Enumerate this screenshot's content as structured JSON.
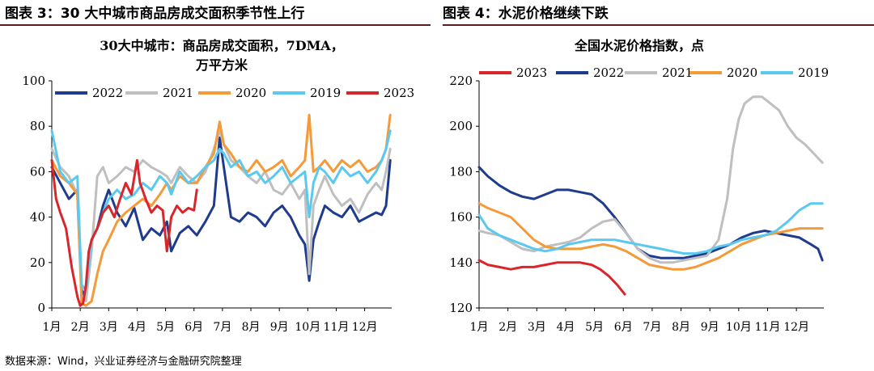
{
  "panel_titles": {
    "left": "图表 3：30 大中城市商品房成交面积季节性上行",
    "right": "图表 4：水泥价格继续下跌"
  },
  "source": "数据来源：Wind，兴业证券经济与金融研究院整理",
  "colors": {
    "2022": "#1f3b8c",
    "2021": "#bfbfbf",
    "2020": "#f59a3a",
    "2019": "#5bc8ef",
    "2023": "#d9262a",
    "rule": "#5a1e1e"
  },
  "chart_data": [
    {
      "type": "line",
      "title_lines": [
        "30大中城市：商品房成交面积，7DMA，",
        "万平方米"
      ],
      "xlabel": "",
      "ylabel": "",
      "ylim": [
        0,
        100
      ],
      "yticks": [
        0,
        20,
        40,
        60,
        80,
        100
      ],
      "xlim": [
        1,
        12.95
      ],
      "xticks": [
        "1月",
        "2月",
        "3月",
        "4月",
        "5月",
        "6月",
        "7月",
        "8月",
        "9月",
        "10月",
        "11月",
        "12月"
      ],
      "legend_order": [
        "2022",
        "2021",
        "2020",
        "2019",
        "2023"
      ],
      "legend_position": "top",
      "series": [
        {
          "name": "2022",
          "x": [
            1,
            1.3,
            1.6,
            1.9,
            2.05,
            2.2,
            2.4,
            2.6,
            2.8,
            3.0,
            3.3,
            3.6,
            3.9,
            4.2,
            4.5,
            4.8,
            5.05,
            5.2,
            5.5,
            5.8,
            6.1,
            6.4,
            6.7,
            6.9,
            7.05,
            7.3,
            7.6,
            7.9,
            8.2,
            8.5,
            8.8,
            9.1,
            9.4,
            9.7,
            9.9,
            10.05,
            10.2,
            10.4,
            10.6,
            10.9,
            11.2,
            11.5,
            11.8,
            12.1,
            12.4,
            12.6,
            12.75,
            12.9
          ],
          "y": [
            62,
            55,
            48,
            52,
            8,
            4,
            30,
            35,
            45,
            52,
            42,
            36,
            44,
            30,
            35,
            32,
            38,
            25,
            33,
            36,
            32,
            38,
            45,
            75,
            62,
            40,
            38,
            42,
            40,
            36,
            42,
            45,
            40,
            32,
            28,
            12,
            30,
            38,
            45,
            42,
            40,
            45,
            38,
            40,
            42,
            41,
            45,
            65
          ]
        },
        {
          "name": "2021",
          "x": [
            1,
            1.3,
            1.6,
            1.9,
            2.05,
            2.2,
            2.4,
            2.6,
            2.8,
            3.0,
            3.3,
            3.6,
            3.9,
            4.2,
            4.5,
            4.8,
            5.05,
            5.2,
            5.5,
            5.8,
            6.1,
            6.4,
            6.7,
            6.9,
            7.05,
            7.3,
            7.6,
            7.9,
            8.2,
            8.5,
            8.8,
            9.1,
            9.4,
            9.7,
            9.9,
            10.05,
            10.2,
            10.4,
            10.6,
            10.9,
            11.2,
            11.5,
            11.8,
            12.1,
            12.4,
            12.6,
            12.75,
            12.9
          ],
          "y": [
            70,
            62,
            58,
            50,
            5,
            3,
            25,
            58,
            62,
            55,
            58,
            62,
            60,
            65,
            62,
            60,
            58,
            55,
            62,
            58,
            55,
            60,
            70,
            78,
            72,
            65,
            62,
            58,
            55,
            60,
            52,
            50,
            55,
            48,
            52,
            15,
            45,
            52,
            58,
            50,
            45,
            48,
            42,
            50,
            55,
            52,
            60,
            70
          ]
        },
        {
          "name": "2020",
          "x": [
            1,
            1.3,
            1.6,
            1.9,
            2.05,
            2.2,
            2.4,
            2.6,
            2.8,
            3.0,
            3.3,
            3.6,
            3.9,
            4.2,
            4.5,
            4.8,
            5.05,
            5.2,
            5.5,
            5.8,
            6.1,
            6.4,
            6.7,
            6.9,
            7.05,
            7.3,
            7.6,
            7.9,
            8.2,
            8.5,
            8.8,
            9.1,
            9.4,
            9.7,
            9.9,
            10.05,
            10.2,
            10.4,
            10.6,
            10.9,
            11.2,
            11.5,
            11.8,
            12.1,
            12.4,
            12.6,
            12.75,
            12.9
          ],
          "y": [
            65,
            58,
            55,
            50,
            2,
            1,
            3,
            15,
            25,
            30,
            38,
            42,
            45,
            48,
            45,
            50,
            55,
            52,
            58,
            55,
            55,
            62,
            68,
            82,
            72,
            68,
            62,
            60,
            65,
            60,
            62,
            65,
            58,
            62,
            65,
            85,
            60,
            62,
            65,
            60,
            65,
            62,
            65,
            60,
            62,
            65,
            70,
            85
          ]
        },
        {
          "name": "2019",
          "x": [
            1,
            1.3,
            1.6,
            1.9,
            2.05,
            2.2,
            2.4,
            2.6,
            2.8,
            3.0,
            3.3,
            3.6,
            3.9,
            4.2,
            4.5,
            4.8,
            5.05,
            5.2,
            5.5,
            5.8,
            6.1,
            6.4,
            6.7,
            6.9,
            7.05,
            7.3,
            7.6,
            7.9,
            8.2,
            8.5,
            8.8,
            9.1,
            9.4,
            9.7,
            9.9,
            10.05,
            10.2,
            10.4,
            10.6,
            10.9,
            11.2,
            11.5,
            11.8,
            12.1,
            12.4,
            12.6,
            12.75,
            12.9
          ],
          "y": [
            78,
            60,
            55,
            58,
            10,
            8,
            30,
            35,
            42,
            48,
            52,
            48,
            50,
            55,
            52,
            58,
            55,
            50,
            60,
            55,
            58,
            62,
            65,
            70,
            68,
            62,
            65,
            58,
            60,
            55,
            58,
            62,
            55,
            58,
            60,
            40,
            55,
            62,
            60,
            55,
            62,
            58,
            60,
            55,
            60,
            65,
            70,
            78
          ]
        },
        {
          "name": "2023",
          "x": [
            1,
            1.15,
            1.3,
            1.5,
            1.7,
            1.9,
            2.0,
            2.1,
            2.2,
            2.3,
            2.4,
            2.6,
            2.8,
            3.0,
            3.2,
            3.4,
            3.6,
            3.8,
            4.0,
            4.1,
            4.3,
            4.5,
            4.7,
            4.9,
            5.05,
            5.2,
            5.4,
            5.6,
            5.8,
            6.0,
            6.1
          ],
          "y": [
            65,
            48,
            42,
            35,
            18,
            5,
            1,
            2,
            10,
            25,
            30,
            35,
            42,
            45,
            40,
            48,
            55,
            50,
            65,
            55,
            48,
            42,
            45,
            43,
            25,
            40,
            45,
            42,
            44,
            43,
            52
          ]
        }
      ]
    },
    {
      "type": "line",
      "title_lines": [
        "全国水泥价格指数，点"
      ],
      "xlabel": "",
      "ylabel": "",
      "ylim": [
        120,
        220
      ],
      "yticks": [
        120,
        140,
        160,
        180,
        200,
        220
      ],
      "xlim": [
        1,
        12.95
      ],
      "xticks": [
        "1月",
        "2月",
        "3月",
        "4月",
        "5月",
        "6月",
        "7月",
        "8月",
        "9月",
        "10月",
        "11月",
        "12月"
      ],
      "legend_order": [
        "2023",
        "2022",
        "2021",
        "2020",
        "2019"
      ],
      "legend_position": "top",
      "series": [
        {
          "name": "2023",
          "x": [
            1,
            1.3,
            1.7,
            2.1,
            2.5,
            2.9,
            3.3,
            3.7,
            4.1,
            4.5,
            4.9,
            5.2,
            5.5,
            5.8,
            6.05
          ],
          "y": [
            141,
            139,
            138,
            137,
            138,
            138,
            139,
            140,
            140,
            140,
            139,
            137,
            134,
            130,
            126
          ]
        },
        {
          "name": "2022",
          "x": [
            1,
            1.3,
            1.7,
            2.1,
            2.5,
            2.9,
            3.3,
            3.7,
            4.1,
            4.5,
            4.9,
            5.3,
            5.7,
            6.1,
            6.5,
            6.9,
            7.3,
            7.7,
            8.1,
            8.5,
            8.9,
            9.3,
            9.7,
            10.1,
            10.5,
            10.9,
            11.3,
            11.7,
            12.1,
            12.5,
            12.75,
            12.9
          ],
          "y": [
            182,
            178,
            174,
            171,
            169,
            168,
            170,
            172,
            172,
            171,
            170,
            166,
            160,
            153,
            146,
            143,
            142,
            142,
            142,
            143,
            144,
            146,
            148,
            151,
            153,
            154,
            153,
            152,
            151,
            148,
            146,
            141
          ]
        },
        {
          "name": "2021",
          "x": [
            1,
            1.3,
            1.7,
            2.1,
            2.5,
            2.9,
            3.3,
            3.7,
            4.1,
            4.5,
            4.9,
            5.3,
            5.7,
            6.1,
            6.5,
            6.9,
            7.3,
            7.7,
            8.1,
            8.5,
            8.9,
            9.3,
            9.6,
            9.8,
            10.0,
            10.2,
            10.5,
            10.8,
            11.1,
            11.4,
            11.7,
            12.0,
            12.3,
            12.6,
            12.9
          ],
          "y": [
            154,
            153,
            152,
            149,
            146,
            145,
            147,
            148,
            149,
            151,
            155,
            158,
            159,
            153,
            146,
            142,
            140,
            140,
            141,
            142,
            143,
            150,
            168,
            190,
            203,
            210,
            213,
            213,
            210,
            207,
            200,
            195,
            192,
            188,
            184
          ]
        },
        {
          "name": "2020",
          "x": [
            1,
            1.3,
            1.7,
            2.1,
            2.5,
            2.9,
            3.3,
            3.7,
            4.1,
            4.5,
            4.9,
            5.3,
            5.7,
            6.1,
            6.5,
            6.9,
            7.3,
            7.7,
            8.1,
            8.5,
            8.9,
            9.3,
            9.7,
            10.1,
            10.5,
            10.9,
            11.3,
            11.7,
            12.1,
            12.5,
            12.9
          ],
          "y": [
            166,
            164,
            162,
            160,
            155,
            150,
            147,
            146,
            146,
            146,
            147,
            148,
            147,
            145,
            142,
            139,
            138,
            137,
            137,
            138,
            140,
            142,
            145,
            148,
            150,
            152,
            153,
            154,
            155,
            155,
            155
          ]
        },
        {
          "name": "2019",
          "x": [
            1,
            1.3,
            1.7,
            2.1,
            2.5,
            2.9,
            3.3,
            3.7,
            4.1,
            4.5,
            4.9,
            5.3,
            5.7,
            6.1,
            6.5,
            6.9,
            7.3,
            7.7,
            8.1,
            8.5,
            8.9,
            9.3,
            9.7,
            10.1,
            10.5,
            10.9,
            11.3,
            11.7,
            12.1,
            12.5,
            12.9
          ],
          "y": [
            161,
            155,
            152,
            150,
            148,
            146,
            145,
            146,
            148,
            149,
            150,
            150,
            150,
            149,
            148,
            147,
            146,
            145,
            144,
            144,
            145,
            147,
            148,
            150,
            151,
            152,
            154,
            158,
            163,
            166,
            166
          ]
        }
      ]
    }
  ]
}
